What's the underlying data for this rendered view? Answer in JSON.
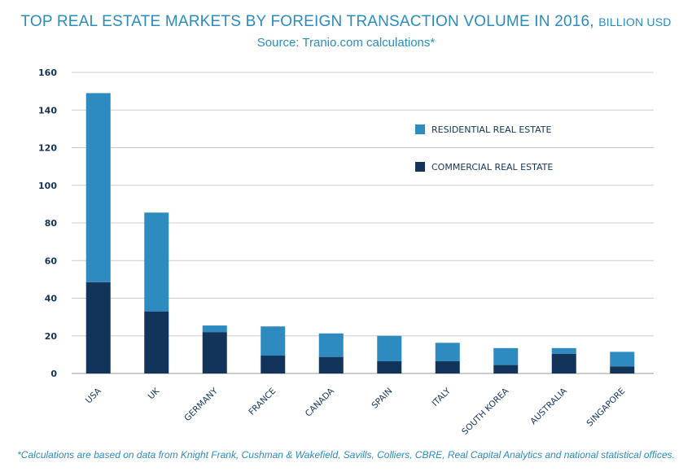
{
  "title": "TOP REAL ESTATE MARKETS BY FOREIGN TRANSACTION VOLUME IN 2016,",
  "title_unit": "BILLION USD",
  "subtitle": "Source: Tranio.com calculations*",
  "footnote": "*Calculations are based on data from Knight Frank, Cushman & Wakefield, Savills, Colliers, CBRE, Real Capital Analytics and national statistical offices.",
  "colors": {
    "residential": "#2e8bc0",
    "commercial": "#13345a",
    "grid": "#cccccc",
    "text": "#13345a",
    "title": "#2a8bbf"
  },
  "chart_data": {
    "type": "bar",
    "stacked": true,
    "categories": [
      "USA",
      "UK",
      "GERMANY",
      "FRANCE",
      "CANADA",
      "SPAIN",
      "ITALY",
      "SOUTH KOREA",
      "AUSTRALIA",
      "SINGAPORE"
    ],
    "series": [
      {
        "name": "COMMERCIAL REAL ESTATE",
        "values": [
          48.5,
          33,
          22,
          9.5,
          8.8,
          6.5,
          6.5,
          4.5,
          10.5,
          3.8
        ]
      },
      {
        "name": "RESIDENTIAL REAL ESTATE",
        "values": [
          100.5,
          52.5,
          3.5,
          15.5,
          12.5,
          13.5,
          9.8,
          9,
          3,
          7.7
        ]
      }
    ],
    "yticks": [
      0,
      20,
      40,
      60,
      80,
      100,
      120,
      140,
      160
    ],
    "ylim": [
      0,
      160
    ],
    "grid": true,
    "legend": {
      "position": "top-right",
      "items": [
        "RESIDENTIAL REAL ESTATE",
        "COMMERCIAL REAL ESTATE"
      ]
    }
  }
}
